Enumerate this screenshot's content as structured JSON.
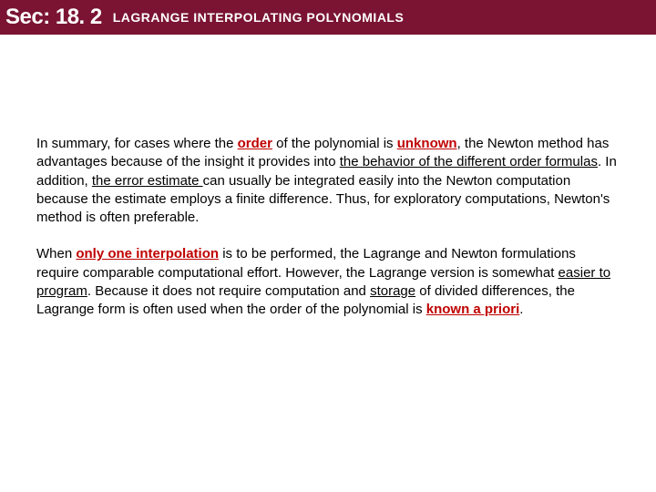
{
  "header": {
    "sec_label": "Sec: 18. 2",
    "title": "LAGRANGE INTERPOLATING POLYNOMIALS",
    "bg_color": "#7a1432",
    "text_color": "#ffffff"
  },
  "paragraphs": {
    "p1": {
      "t1": "In summary, for cases where the ",
      "h1": "order",
      "t2": " of the polynomial is ",
      "h2": "unknown",
      "t3": ", the Newton method has advantages because of the insight it provides into ",
      "u1": "the behavior of the different order formulas",
      "t4": ". In addition, ",
      "u2": "the error estimate ",
      "t5": "can usually be integrated easily into the Newton computation because the estimate employs a finite difference. Thus, for exploratory computations, Newton's method is often preferable."
    },
    "p2": {
      "t1": "When ",
      "h1": "only one interpolation",
      "t2": " is to be performed, the Lagrange and Newton formulations require comparable computational effort. However, the Lagrange version is somewhat ",
      "u1": "easier to program",
      "t3": ". Because it does not require computation and ",
      "u2": "storage",
      "t4": " of divided differences, the Lagrange form is often used when the order of the polynomial is ",
      "h2": "known a priori",
      "t5": "."
    }
  },
  "styles": {
    "highlight_color": "#c00000",
    "body_font_size": 15,
    "header_sec_font_size": 24,
    "header_title_font_size": 14
  }
}
